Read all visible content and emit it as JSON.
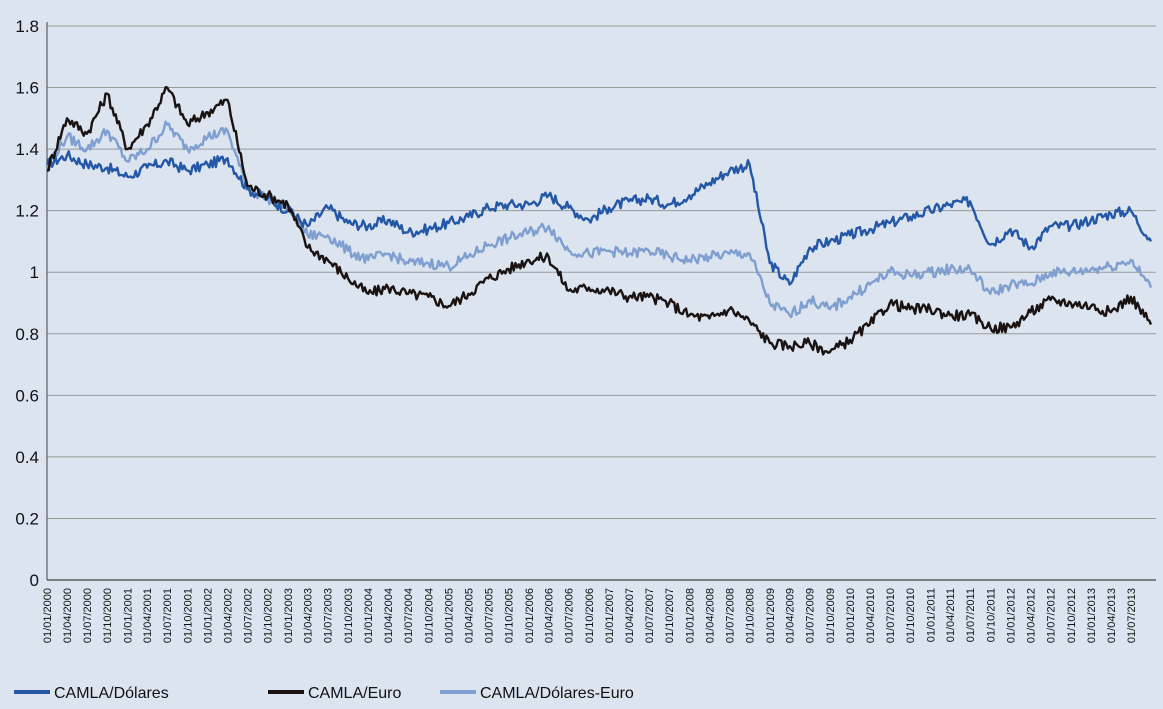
{
  "chart_data": {
    "type": "line",
    "title": "",
    "xlabel": "",
    "ylabel": "",
    "ylim": [
      0,
      1.8
    ],
    "y_ticks": [
      "0",
      "0.2",
      "0.4",
      "0.6",
      "0.8",
      "1",
      "1.2",
      "1.4",
      "1.6",
      "1.8"
    ],
    "x_ticks": [
      "01/01/2000",
      "01/04/2000",
      "01/07/2000",
      "01/10/2000",
      "01/01/2001",
      "01/04/2001",
      "01/07/2001",
      "01/10/2001",
      "01/01/2002",
      "01/04/2002",
      "01/07/2002",
      "01/10/2002",
      "01/01/2003",
      "01/04/2003",
      "01/07/2003",
      "01/10/2003",
      "01/01/2004",
      "01/04/2004",
      "01/07/2004",
      "01/10/2004",
      "01/01/2005",
      "01/04/2005",
      "01/07/2005",
      "01/10/2005",
      "01/01/2006",
      "01/04/2006",
      "01/07/2006",
      "01/10/2006",
      "01/01/2007",
      "01/04/2007",
      "01/07/2007",
      "01/10/2007",
      "01/01/2008",
      "01/04/2008",
      "01/07/2008",
      "01/10/2008",
      "01/01/2009",
      "01/04/2009",
      "01/07/2009",
      "01/10/2009",
      "01/01/2010",
      "01/04/2010",
      "01/07/2010",
      "01/10/2010",
      "01/01/2011",
      "01/04/2011",
      "01/07/2011",
      "01/10/2011",
      "01/01/2012",
      "01/04/2012",
      "01/07/2012",
      "01/10/2012",
      "01/01/2013",
      "01/04/2013",
      "01/07/2013"
    ],
    "grid": true,
    "legend_position": "bottom",
    "series": [
      {
        "name": "CAMLA/Dólares",
        "color": "#2458a6",
        "x": [
          "01/01/2000",
          "01/04/2000",
          "01/07/2000",
          "01/10/2000",
          "01/01/2001",
          "01/04/2001",
          "01/07/2001",
          "01/10/2001",
          "01/01/2002",
          "01/04/2002",
          "01/07/2002",
          "01/10/2002",
          "01/01/2003",
          "01/04/2003",
          "01/07/2003",
          "01/10/2003",
          "01/01/2004",
          "01/04/2004",
          "01/07/2004",
          "01/10/2004",
          "01/01/2005",
          "01/04/2005",
          "01/07/2005",
          "01/10/2005",
          "01/01/2006",
          "01/04/2006",
          "01/07/2006",
          "01/10/2006",
          "01/01/2007",
          "01/04/2007",
          "01/07/2007",
          "01/10/2007",
          "01/01/2008",
          "01/04/2008",
          "01/07/2008",
          "01/10/2008",
          "01/01/2009",
          "01/04/2009",
          "01/07/2009",
          "01/10/2009",
          "01/01/2010",
          "01/04/2010",
          "01/07/2010",
          "01/10/2010",
          "01/01/2011",
          "01/04/2011",
          "01/07/2011",
          "01/10/2011",
          "01/01/2012",
          "01/04/2012",
          "01/07/2012",
          "01/10/2012",
          "01/01/2013",
          "01/04/2013",
          "01/07/2013",
          "01/10/2013"
        ],
        "values": [
          1.35,
          1.38,
          1.35,
          1.34,
          1.31,
          1.34,
          1.36,
          1.33,
          1.35,
          1.37,
          1.27,
          1.24,
          1.2,
          1.15,
          1.21,
          1.16,
          1.15,
          1.17,
          1.13,
          1.14,
          1.16,
          1.18,
          1.21,
          1.22,
          1.22,
          1.25,
          1.21,
          1.17,
          1.21,
          1.23,
          1.24,
          1.22,
          1.25,
          1.29,
          1.33,
          1.35,
          1.03,
          0.96,
          1.08,
          1.1,
          1.12,
          1.14,
          1.16,
          1.18,
          1.2,
          1.22,
          1.23,
          1.09,
          1.14,
          1.08,
          1.15,
          1.15,
          1.17,
          1.19,
          1.2,
          1.1
        ]
      },
      {
        "name": "CAMLA/Euro",
        "color": "#1a1311",
        "x": [
          "01/01/2000",
          "01/04/2000",
          "01/07/2000",
          "01/10/2000",
          "01/01/2001",
          "01/04/2001",
          "01/07/2001",
          "01/10/2001",
          "01/01/2002",
          "01/04/2002",
          "01/07/2002",
          "01/10/2002",
          "01/01/2003",
          "01/04/2003",
          "01/07/2003",
          "01/10/2003",
          "01/01/2004",
          "01/04/2004",
          "01/07/2004",
          "01/10/2004",
          "01/01/2005",
          "01/04/2005",
          "01/07/2005",
          "01/10/2005",
          "01/01/2006",
          "01/04/2006",
          "01/07/2006",
          "01/10/2006",
          "01/01/2007",
          "01/04/2007",
          "01/07/2007",
          "01/10/2007",
          "01/01/2008",
          "01/04/2008",
          "01/07/2008",
          "01/10/2008",
          "01/01/2009",
          "01/04/2009",
          "01/07/2009",
          "01/10/2009",
          "01/01/2010",
          "01/04/2010",
          "01/07/2010",
          "01/10/2010",
          "01/01/2011",
          "01/04/2011",
          "01/07/2011",
          "01/10/2011",
          "01/01/2012",
          "01/04/2012",
          "01/07/2012",
          "01/10/2012",
          "01/01/2013",
          "01/04/2013",
          "01/07/2013",
          "01/10/2013"
        ],
        "values": [
          1.33,
          1.5,
          1.45,
          1.58,
          1.4,
          1.48,
          1.6,
          1.48,
          1.52,
          1.56,
          1.28,
          1.25,
          1.22,
          1.08,
          1.04,
          0.98,
          0.93,
          0.95,
          0.93,
          0.92,
          0.89,
          0.93,
          0.98,
          1.01,
          1.04,
          1.05,
          0.94,
          0.95,
          0.94,
          0.92,
          0.92,
          0.9,
          0.86,
          0.85,
          0.88,
          0.84,
          0.77,
          0.76,
          0.77,
          0.74,
          0.78,
          0.83,
          0.9,
          0.88,
          0.88,
          0.86,
          0.86,
          0.82,
          0.82,
          0.87,
          0.91,
          0.9,
          0.89,
          0.87,
          0.92,
          0.83
        ]
      },
      {
        "name": "CAMLA/Dólares-Euro",
        "color": "#7f9fd0",
        "x": [
          "01/01/2000",
          "01/04/2000",
          "01/07/2000",
          "01/10/2000",
          "01/01/2001",
          "01/04/2001",
          "01/07/2001",
          "01/10/2001",
          "01/01/2002",
          "01/04/2002",
          "01/07/2002",
          "01/10/2002",
          "01/01/2003",
          "01/04/2003",
          "01/07/2003",
          "01/10/2003",
          "01/01/2004",
          "01/04/2004",
          "01/07/2004",
          "01/10/2004",
          "01/01/2005",
          "01/04/2005",
          "01/07/2005",
          "01/10/2005",
          "01/01/2006",
          "01/04/2006",
          "01/07/2006",
          "01/10/2006",
          "01/01/2007",
          "01/04/2007",
          "01/07/2007",
          "01/10/2007",
          "01/01/2008",
          "01/04/2008",
          "01/07/2008",
          "01/10/2008",
          "01/01/2009",
          "01/04/2009",
          "01/07/2009",
          "01/10/2009",
          "01/01/2010",
          "01/04/2010",
          "01/07/2010",
          "01/10/2010",
          "01/01/2011",
          "01/04/2011",
          "01/07/2011",
          "01/10/2011",
          "01/01/2012",
          "01/04/2012",
          "01/07/2012",
          "01/10/2012",
          "01/01/2013",
          "01/04/2013",
          "01/07/2013",
          "01/10/2013"
        ],
        "values": [
          1.35,
          1.44,
          1.4,
          1.46,
          1.36,
          1.4,
          1.48,
          1.4,
          1.44,
          1.46,
          1.27,
          1.24,
          1.21,
          1.12,
          1.12,
          1.07,
          1.04,
          1.06,
          1.03,
          1.03,
          1.02,
          1.05,
          1.09,
          1.11,
          1.13,
          1.15,
          1.07,
          1.06,
          1.07,
          1.06,
          1.07,
          1.05,
          1.04,
          1.05,
          1.06,
          1.06,
          0.9,
          0.86,
          0.91,
          0.88,
          0.92,
          0.96,
          1.0,
          0.99,
          1.0,
          1.01,
          1.01,
          0.93,
          0.96,
          0.96,
          1.0,
          1.0,
          1.01,
          1.02,
          1.04,
          0.95
        ]
      }
    ]
  }
}
